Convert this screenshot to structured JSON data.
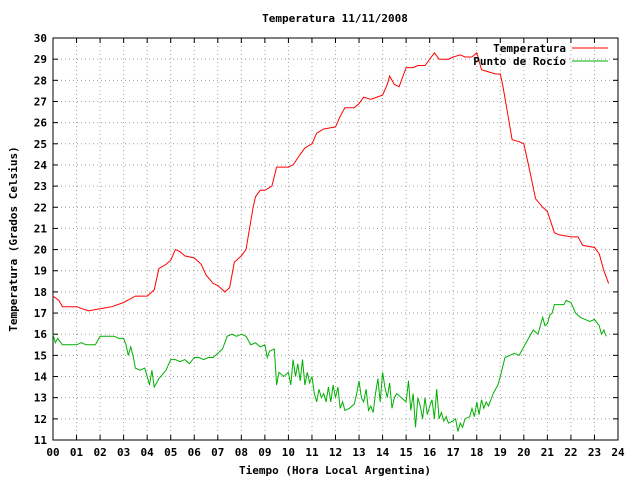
{
  "chart_data": {
    "type": "line",
    "title": "Temperatura 11/11/2008",
    "xlabel": "Tiempo (Hora Local Argentina)",
    "ylabel": "Temperatura (Grados Celsius)",
    "xlim": [
      0,
      24
    ],
    "ylim": [
      11,
      30
    ],
    "x_ticks": [
      "00",
      "01",
      "02",
      "03",
      "04",
      "05",
      "06",
      "07",
      "08",
      "09",
      "10",
      "11",
      "12",
      "13",
      "14",
      "15",
      "16",
      "17",
      "18",
      "19",
      "20",
      "21",
      "22",
      "23",
      "24"
    ],
    "y_ticks": [
      11,
      12,
      13,
      14,
      15,
      16,
      17,
      18,
      19,
      20,
      21,
      22,
      23,
      24,
      25,
      26,
      27,
      28,
      29,
      30
    ],
    "grid": true,
    "legend_position": "top-right",
    "series": [
      {
        "name": "Temperatura",
        "color": "#ff0000",
        "points": [
          [
            0.0,
            17.8
          ],
          [
            0.25,
            17.6
          ],
          [
            0.4,
            17.3
          ],
          [
            1.0,
            17.3
          ],
          [
            1.5,
            17.1
          ],
          [
            2.0,
            17.2
          ],
          [
            2.5,
            17.3
          ],
          [
            3.0,
            17.5
          ],
          [
            3.5,
            17.8
          ],
          [
            4.0,
            17.8
          ],
          [
            4.3,
            18.1
          ],
          [
            4.5,
            19.1
          ],
          [
            4.8,
            19.3
          ],
          [
            5.0,
            19.5
          ],
          [
            5.2,
            20.0
          ],
          [
            5.4,
            19.9
          ],
          [
            5.6,
            19.7
          ],
          [
            6.0,
            19.6
          ],
          [
            6.3,
            19.3
          ],
          [
            6.5,
            18.8
          ],
          [
            6.8,
            18.4
          ],
          [
            7.0,
            18.3
          ],
          [
            7.3,
            18.0
          ],
          [
            7.5,
            18.2
          ],
          [
            7.7,
            19.4
          ],
          [
            8.0,
            19.7
          ],
          [
            8.2,
            20.0
          ],
          [
            8.5,
            22.0
          ],
          [
            8.6,
            22.5
          ],
          [
            8.8,
            22.8
          ],
          [
            9.0,
            22.8
          ],
          [
            9.3,
            23.0
          ],
          [
            9.5,
            23.9
          ],
          [
            10.0,
            23.9
          ],
          [
            10.2,
            24.0
          ],
          [
            10.5,
            24.5
          ],
          [
            10.7,
            24.8
          ],
          [
            11.0,
            25.0
          ],
          [
            11.2,
            25.5
          ],
          [
            11.5,
            25.7
          ],
          [
            12.0,
            25.8
          ],
          [
            12.2,
            26.3
          ],
          [
            12.4,
            26.7
          ],
          [
            12.8,
            26.7
          ],
          [
            13.0,
            26.9
          ],
          [
            13.2,
            27.2
          ],
          [
            13.5,
            27.1
          ],
          [
            14.0,
            27.3
          ],
          [
            14.2,
            27.8
          ],
          [
            14.3,
            28.2
          ],
          [
            14.5,
            27.8
          ],
          [
            14.7,
            27.7
          ],
          [
            14.9,
            28.3
          ],
          [
            15.0,
            28.6
          ],
          [
            15.3,
            28.6
          ],
          [
            15.5,
            28.7
          ],
          [
            15.8,
            28.7
          ],
          [
            16.0,
            29.0
          ],
          [
            16.2,
            29.3
          ],
          [
            16.4,
            29.0
          ],
          [
            16.8,
            29.0
          ],
          [
            17.0,
            29.1
          ],
          [
            17.3,
            29.2
          ],
          [
            17.5,
            29.1
          ],
          [
            17.8,
            29.1
          ],
          [
            18.0,
            29.3
          ],
          [
            18.2,
            28.5
          ],
          [
            18.5,
            28.4
          ],
          [
            18.8,
            28.3
          ],
          [
            19.0,
            28.3
          ],
          [
            19.1,
            27.8
          ],
          [
            19.3,
            26.5
          ],
          [
            19.5,
            25.2
          ],
          [
            19.8,
            25.1
          ],
          [
            20.0,
            25.0
          ],
          [
            20.2,
            24.0
          ],
          [
            20.5,
            22.4
          ],
          [
            20.8,
            22.0
          ],
          [
            21.0,
            21.8
          ],
          [
            21.3,
            20.8
          ],
          [
            21.5,
            20.7
          ],
          [
            22.0,
            20.6
          ],
          [
            22.3,
            20.6
          ],
          [
            22.5,
            20.2
          ],
          [
            23.0,
            20.1
          ],
          [
            23.2,
            19.8
          ],
          [
            23.4,
            19.0
          ],
          [
            23.6,
            18.4
          ]
        ]
      },
      {
        "name": "Punto de Rocío",
        "color": "#00b000",
        "points": [
          [
            0.0,
            16.0
          ],
          [
            0.1,
            15.6
          ],
          [
            0.2,
            15.8
          ],
          [
            0.4,
            15.5
          ],
          [
            0.6,
            15.5
          ],
          [
            1.0,
            15.5
          ],
          [
            1.2,
            15.6
          ],
          [
            1.4,
            15.5
          ],
          [
            1.6,
            15.5
          ],
          [
            1.8,
            15.5
          ],
          [
            2.0,
            15.9
          ],
          [
            2.3,
            15.9
          ],
          [
            2.6,
            15.9
          ],
          [
            2.8,
            15.8
          ],
          [
            3.0,
            15.8
          ],
          [
            3.1,
            15.5
          ],
          [
            3.2,
            15.0
          ],
          [
            3.3,
            15.4
          ],
          [
            3.4,
            15.0
          ],
          [
            3.5,
            14.4
          ],
          [
            3.7,
            14.3
          ],
          [
            3.9,
            14.4
          ],
          [
            4.0,
            14.0
          ],
          [
            4.1,
            13.6
          ],
          [
            4.2,
            14.3
          ],
          [
            4.3,
            13.5
          ],
          [
            4.5,
            13.9
          ],
          [
            4.8,
            14.3
          ],
          [
            5.0,
            14.8
          ],
          [
            5.2,
            14.8
          ],
          [
            5.4,
            14.7
          ],
          [
            5.6,
            14.8
          ],
          [
            5.8,
            14.6
          ],
          [
            6.0,
            14.9
          ],
          [
            6.2,
            14.9
          ],
          [
            6.4,
            14.8
          ],
          [
            6.6,
            14.9
          ],
          [
            6.8,
            14.9
          ],
          [
            7.0,
            15.1
          ],
          [
            7.2,
            15.3
          ],
          [
            7.4,
            15.9
          ],
          [
            7.6,
            16.0
          ],
          [
            7.8,
            15.9
          ],
          [
            8.0,
            16.0
          ],
          [
            8.2,
            15.9
          ],
          [
            8.4,
            15.5
          ],
          [
            8.6,
            15.6
          ],
          [
            8.8,
            15.4
          ],
          [
            9.0,
            15.5
          ],
          [
            9.1,
            14.9
          ],
          [
            9.2,
            15.2
          ],
          [
            9.4,
            15.3
          ],
          [
            9.5,
            13.6
          ],
          [
            9.6,
            14.2
          ],
          [
            9.8,
            14.0
          ],
          [
            10.0,
            14.2
          ],
          [
            10.1,
            13.6
          ],
          [
            10.2,
            14.8
          ],
          [
            10.3,
            14.0
          ],
          [
            10.4,
            14.6
          ],
          [
            10.5,
            13.8
          ],
          [
            10.6,
            14.8
          ],
          [
            10.7,
            13.6
          ],
          [
            10.8,
            14.2
          ],
          [
            10.9,
            13.7
          ],
          [
            11.0,
            14.0
          ],
          [
            11.1,
            13.2
          ],
          [
            11.2,
            12.8
          ],
          [
            11.3,
            13.4
          ],
          [
            11.4,
            13.0
          ],
          [
            11.5,
            13.2
          ],
          [
            11.6,
            12.8
          ],
          [
            11.7,
            13.5
          ],
          [
            11.8,
            12.8
          ],
          [
            11.9,
            13.6
          ],
          [
            12.0,
            13.0
          ],
          [
            12.1,
            13.5
          ],
          [
            12.2,
            12.5
          ],
          [
            12.3,
            12.8
          ],
          [
            12.4,
            12.4
          ],
          [
            12.6,
            12.5
          ],
          [
            12.8,
            12.7
          ],
          [
            12.9,
            13.2
          ],
          [
            13.0,
            13.8
          ],
          [
            13.1,
            13.0
          ],
          [
            13.2,
            12.8
          ],
          [
            13.3,
            13.4
          ],
          [
            13.4,
            12.4
          ],
          [
            13.5,
            12.6
          ],
          [
            13.6,
            12.3
          ],
          [
            13.7,
            13.2
          ],
          [
            13.8,
            13.9
          ],
          [
            13.9,
            12.8
          ],
          [
            14.0,
            14.2
          ],
          [
            14.1,
            13.5
          ],
          [
            14.2,
            13.0
          ],
          [
            14.3,
            13.7
          ],
          [
            14.4,
            12.5
          ],
          [
            14.5,
            13.0
          ],
          [
            14.6,
            13.2
          ],
          [
            14.8,
            13.0
          ],
          [
            15.0,
            12.8
          ],
          [
            15.1,
            13.8
          ],
          [
            15.2,
            12.4
          ],
          [
            15.3,
            13.2
          ],
          [
            15.4,
            11.6
          ],
          [
            15.5,
            13.0
          ],
          [
            15.6,
            12.6
          ],
          [
            15.7,
            12.0
          ],
          [
            15.8,
            13.0
          ],
          [
            15.9,
            12.2
          ],
          [
            16.0,
            12.6
          ],
          [
            16.1,
            12.9
          ],
          [
            16.2,
            12.0
          ],
          [
            16.3,
            13.4
          ],
          [
            16.4,
            12.0
          ],
          [
            16.5,
            12.3
          ],
          [
            16.6,
            11.9
          ],
          [
            16.7,
            12.1
          ],
          [
            16.8,
            11.8
          ],
          [
            17.0,
            11.9
          ],
          [
            17.1,
            12.0
          ],
          [
            17.2,
            11.4
          ],
          [
            17.3,
            11.8
          ],
          [
            17.4,
            11.6
          ],
          [
            17.5,
            12.0
          ],
          [
            17.7,
            12.1
          ],
          [
            17.8,
            12.5
          ],
          [
            17.9,
            12.1
          ],
          [
            18.0,
            12.8
          ],
          [
            18.1,
            12.2
          ],
          [
            18.2,
            12.9
          ],
          [
            18.3,
            12.5
          ],
          [
            18.4,
            12.8
          ],
          [
            18.5,
            12.6
          ],
          [
            18.6,
            12.9
          ],
          [
            18.7,
            13.2
          ],
          [
            18.9,
            13.6
          ],
          [
            19.0,
            14.0
          ],
          [
            19.2,
            14.9
          ],
          [
            19.4,
            15.0
          ],
          [
            19.6,
            15.1
          ],
          [
            19.8,
            15.0
          ],
          [
            20.0,
            15.4
          ],
          [
            20.2,
            15.8
          ],
          [
            20.4,
            16.2
          ],
          [
            20.6,
            16.0
          ],
          [
            20.7,
            16.4
          ],
          [
            20.8,
            16.8
          ],
          [
            20.9,
            16.4
          ],
          [
            21.0,
            16.5
          ],
          [
            21.1,
            16.9
          ],
          [
            21.2,
            17.0
          ],
          [
            21.3,
            17.4
          ],
          [
            21.5,
            17.4
          ],
          [
            21.7,
            17.4
          ],
          [
            21.8,
            17.6
          ],
          [
            22.0,
            17.5
          ],
          [
            22.2,
            17.0
          ],
          [
            22.4,
            16.8
          ],
          [
            22.6,
            16.7
          ],
          [
            22.8,
            16.6
          ],
          [
            23.0,
            16.7
          ],
          [
            23.2,
            16.4
          ],
          [
            23.3,
            16.0
          ],
          [
            23.4,
            16.2
          ],
          [
            23.5,
            15.9
          ]
        ]
      }
    ]
  }
}
